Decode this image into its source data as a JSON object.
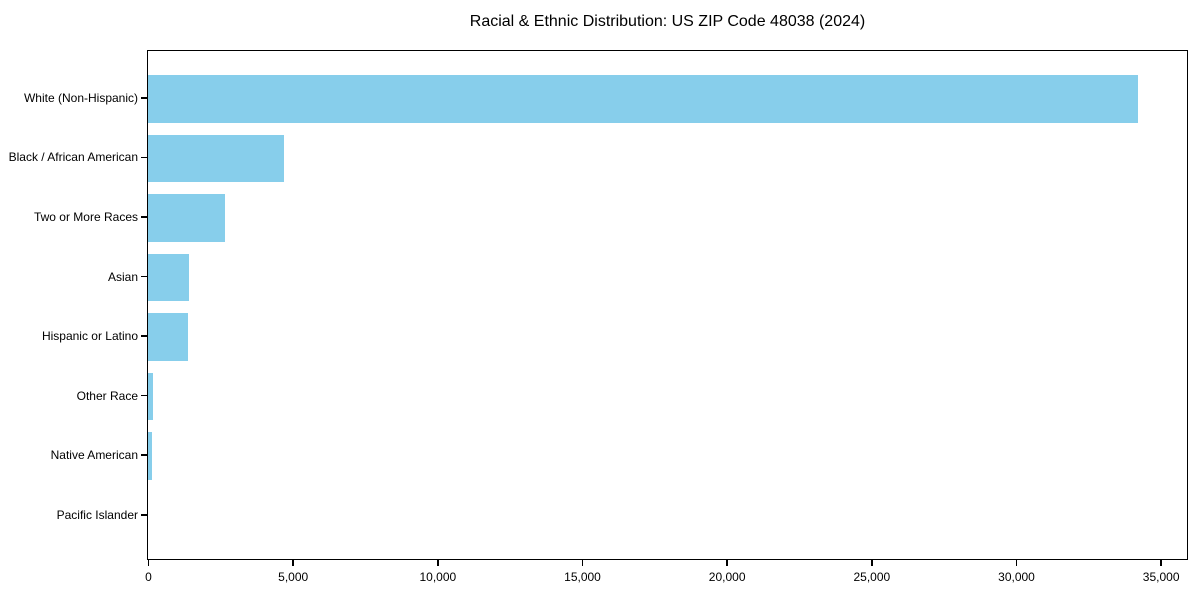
{
  "chart_data": {
    "type": "bar",
    "orientation": "horizontal",
    "title": "Racial & Ethnic Distribution: US ZIP Code 48038 (2024)",
    "categories": [
      "White (Non-Hispanic)",
      "Black / African American",
      "Two or More Races",
      "Asian",
      "Hispanic or Latino",
      "Other Race",
      "Native American",
      "Pacific Islander"
    ],
    "values": [
      34200,
      4700,
      2650,
      1420,
      1390,
      180,
      150,
      0
    ],
    "xlabel": "",
    "ylabel": "",
    "xlim": [
      0,
      35910
    ],
    "x_ticks": [
      0,
      5000,
      10000,
      15000,
      20000,
      25000,
      30000,
      35000
    ],
    "x_tick_labels": [
      "0",
      "5,000",
      "10,000",
      "15,000",
      "20,000",
      "25,000",
      "30,000",
      "35,000"
    ],
    "bar_color": "#87CEEB",
    "text_color": "#000000",
    "background_color": "#FFFFFF",
    "grid": false,
    "legend": "none"
  }
}
